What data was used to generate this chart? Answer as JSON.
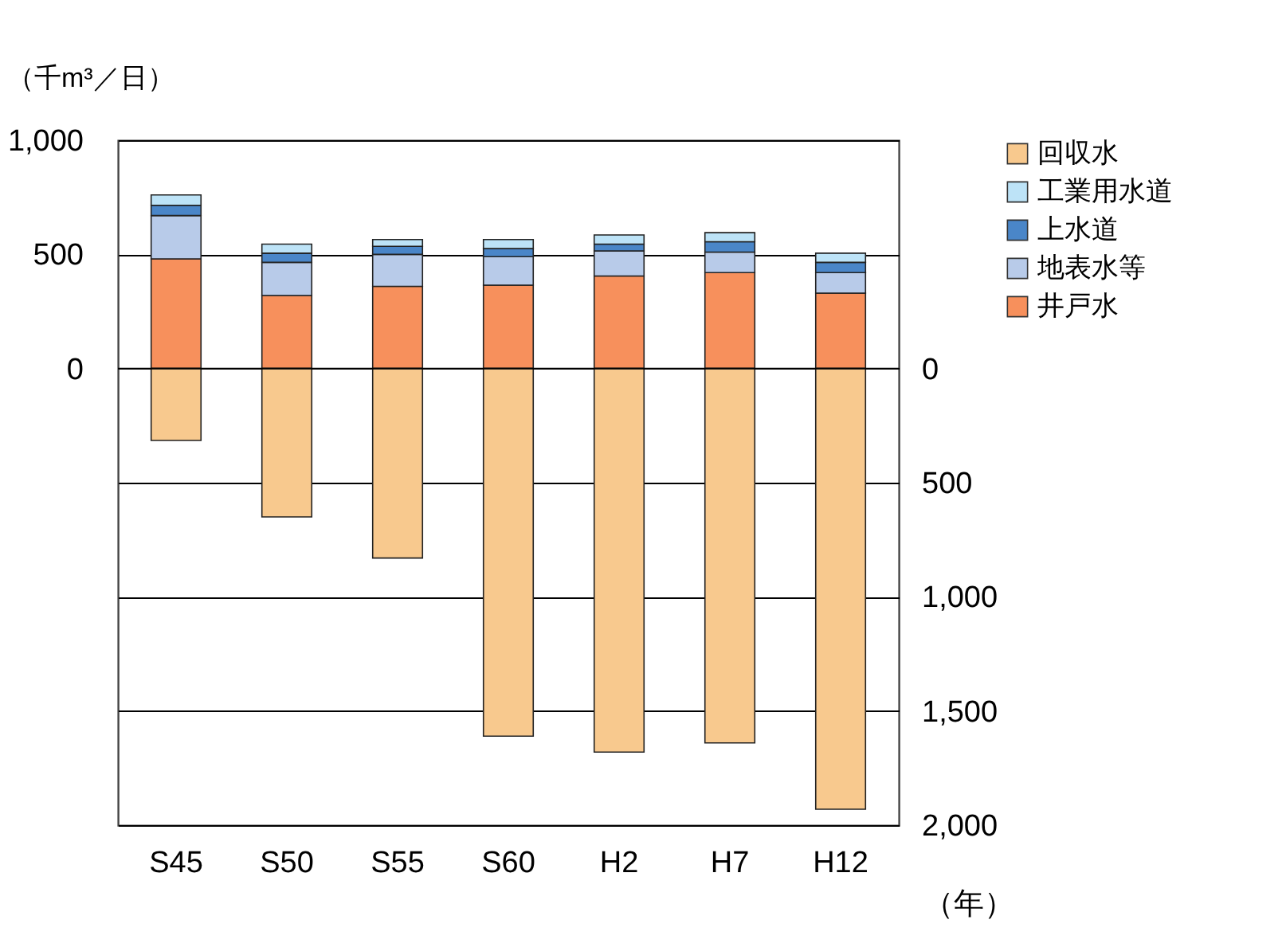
{
  "chart_data": {
    "type": "bar",
    "stacked": true,
    "ylabel": "（千m³／日）",
    "xlabel": "（年）",
    "categories": [
      "S45",
      "S50",
      "S55",
      "S60",
      "H2",
      "H7",
      "H12"
    ],
    "series": [
      {
        "name": "井戸水",
        "color": "#f7905c",
        "values": [
          480,
          320,
          360,
          365,
          405,
          420,
          330
        ]
      },
      {
        "name": "地表水等",
        "color": "#b8cbe9",
        "values": [
          190,
          145,
          140,
          125,
          110,
          90,
          90
        ]
      },
      {
        "name": "上水道",
        "color": "#4a86c8",
        "values": [
          45,
          40,
          35,
          35,
          30,
          45,
          45
        ]
      },
      {
        "name": "工業用水道",
        "color": "#bde3f7",
        "values": [
          45,
          40,
          30,
          40,
          40,
          40,
          40
        ]
      },
      {
        "name": "回収水",
        "color": "#f8c98e",
        "axis": "y2",
        "values": [
          315,
          650,
          830,
          1610,
          1680,
          1640,
          1930
        ]
      }
    ],
    "ylim": [
      -2000,
      1000
    ],
    "yticks": [
      0,
      500,
      {
        "value": 1000,
        "label": "1,000"
      }
    ],
    "y2lim": [
      2000,
      -1000
    ],
    "y2ticks": [
      0,
      500,
      {
        "value": 1000,
        "label": "1,000"
      },
      {
        "value": 1500,
        "label": "1,500"
      },
      {
        "value": 2000,
        "label": "2,000"
      }
    ],
    "grid": true,
    "legend": "right"
  }
}
